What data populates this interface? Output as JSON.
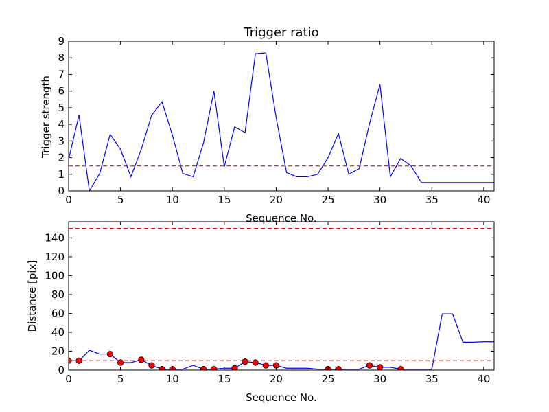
{
  "chart_data": [
    {
      "type": "line",
      "title": "Trigger ratio",
      "xlabel": "Sequence No.",
      "ylabel": "Trigger strength",
      "xlim": [
        0,
        41
      ],
      "ylim": [
        0,
        9
      ],
      "xticks": [
        0,
        5,
        10,
        15,
        20,
        25,
        30,
        35,
        40
      ],
      "yticks": [
        0,
        1,
        2,
        3,
        4,
        5,
        6,
        7,
        8,
        9
      ],
      "series": [
        {
          "color": "#0000ff",
          "x": [
            0,
            1,
            2,
            3,
            4,
            5,
            6,
            7,
            8,
            9,
            10,
            11,
            12,
            13,
            14,
            15,
            16,
            17,
            18,
            19,
            20,
            21,
            22,
            23,
            24,
            25,
            26,
            27,
            28,
            29,
            30,
            31,
            32,
            33,
            34,
            35,
            36,
            37,
            38,
            39,
            40,
            41
          ],
          "y": [
            1.9,
            4.55,
            0.0,
            1.05,
            3.4,
            2.5,
            0.85,
            2.5,
            4.55,
            5.35,
            3.35,
            1.05,
            0.85,
            2.9,
            6.0,
            1.45,
            3.85,
            3.5,
            8.25,
            8.3,
            4.4,
            1.1,
            0.85,
            0.85,
            1.0,
            2.0,
            3.45,
            1.0,
            1.35,
            4.05,
            6.4,
            0.85,
            1.95,
            1.5,
            0.5,
            0.5,
            0.5,
            0.5,
            0.5,
            0.5,
            0.5,
            0.5
          ]
        }
      ],
      "hlines": [
        {
          "y": 1.5,
          "color": "#ff0000",
          "style": "dashed"
        }
      ],
      "grid": false
    },
    {
      "type": "line",
      "title": "",
      "xlabel": "Sequence No.",
      "ylabel": "Distance [pix]",
      "xlim": [
        0,
        41
      ],
      "ylim": [
        0,
        157
      ],
      "xticks": [
        0,
        5,
        10,
        15,
        20,
        25,
        30,
        35,
        40
      ],
      "yticks": [
        0,
        20,
        40,
        60,
        80,
        100,
        120,
        140
      ],
      "series": [
        {
          "color": "#0000ff",
          "x": [
            0,
            1,
            2,
            3,
            4,
            5,
            6,
            7,
            8,
            9,
            10,
            11,
            12,
            13,
            14,
            15,
            16,
            17,
            18,
            19,
            20,
            21,
            22,
            23,
            24,
            25,
            26,
            27,
            28,
            29,
            30,
            31,
            32,
            33,
            34,
            35,
            36,
            37,
            38,
            39,
            40,
            41
          ],
          "y": [
            10,
            10,
            21,
            17,
            17,
            8,
            8,
            11,
            5,
            1,
            1,
            1,
            5,
            1,
            1,
            2,
            2,
            9,
            8,
            5,
            5,
            2,
            2,
            2,
            1,
            1,
            1,
            1,
            1,
            5,
            3,
            3,
            1,
            1,
            1,
            1,
            59.5,
            59.5,
            29.5,
            29.5,
            30,
            30
          ]
        }
      ],
      "markers": {
        "color": "#ff0000",
        "x": [
          0,
          1,
          4,
          5,
          7,
          8,
          9,
          10,
          13,
          14,
          16,
          17,
          18,
          19,
          20,
          25,
          26,
          29,
          30,
          32
        ],
        "y": [
          10,
          10,
          17,
          8,
          11,
          5,
          1,
          1,
          1,
          1,
          2,
          9,
          8,
          5,
          5,
          1,
          1,
          5,
          3,
          1
        ]
      },
      "hlines": [
        {
          "y": 150,
          "color": "#ff0000",
          "style": "dashed"
        },
        {
          "y": 10,
          "color": "#ff0000",
          "style": "dashed"
        }
      ],
      "grid": false
    }
  ]
}
